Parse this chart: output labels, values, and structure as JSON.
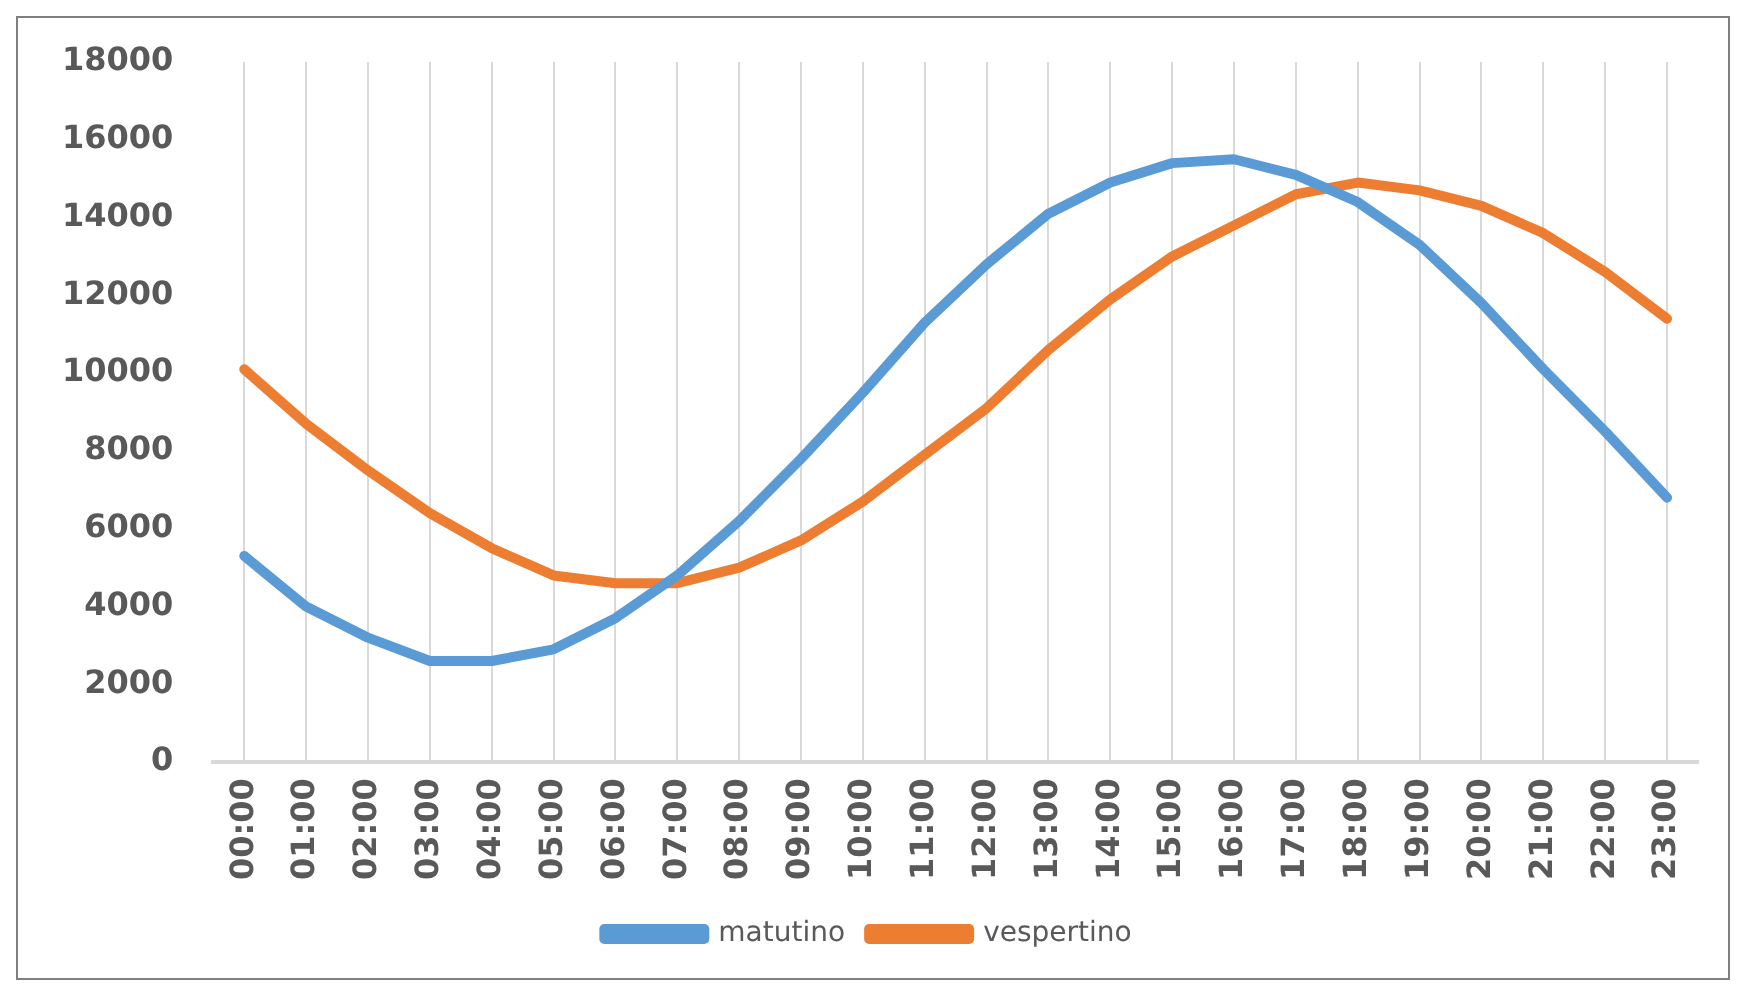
{
  "chart_data": {
    "type": "line",
    "categories": [
      "00:00",
      "01:00",
      "02:00",
      "03:00",
      "04:00",
      "05:00",
      "06:00",
      "07:00",
      "08:00",
      "09:00",
      "10:00",
      "11:00",
      "12:00",
      "13:00",
      "14:00",
      "15:00",
      "16:00",
      "17:00",
      "18:00",
      "19:00",
      "20:00",
      "21:00",
      "22:00",
      "23:00"
    ],
    "series": [
      {
        "name": "matutino",
        "color": "#5b9bd5",
        "values": [
          5300,
          4000,
          3200,
          2600,
          2600,
          2900,
          3700,
          4800,
          6200,
          7800,
          9500,
          11300,
          12800,
          14100,
          14900,
          15400,
          15500,
          15100,
          14400,
          13300,
          11800,
          10100,
          8500,
          6800
        ]
      },
      {
        "name": "vespertino",
        "color": "#ed7d31",
        "values": [
          10100,
          8700,
          7500,
          6400,
          5500,
          4800,
          4600,
          4600,
          5000,
          5700,
          6700,
          7900,
          9100,
          10600,
          11900,
          13000,
          13800,
          14600,
          14900,
          14700,
          14300,
          13600,
          12600,
          11400
        ]
      }
    ],
    "ylim": [
      0,
      18000
    ],
    "yticks": [
      0,
      2000,
      4000,
      6000,
      8000,
      10000,
      12000,
      14000,
      16000,
      18000
    ],
    "grid": "x",
    "legend": "bottom",
    "marker": "none",
    "line_style": "solid"
  }
}
